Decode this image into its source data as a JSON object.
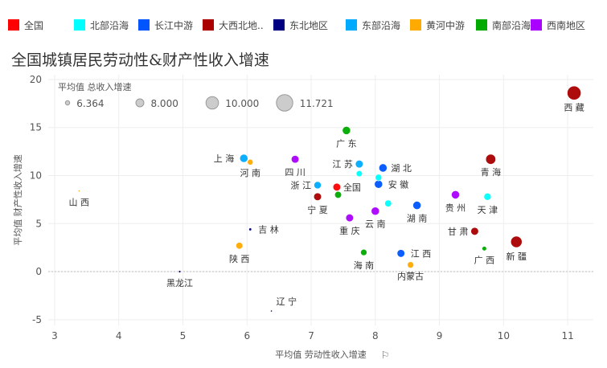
{
  "legend": [
    {
      "name": "全国",
      "color": "#ff0000"
    },
    {
      "name": "北部沿海",
      "color": "#00ffff"
    },
    {
      "name": "长江中游",
      "color": "#0055ff"
    },
    {
      "name": "大西北地..",
      "color": "#aa0000"
    },
    {
      "name": "东北地区",
      "color": "#000080"
    },
    {
      "name": "东部沿海",
      "color": "#00aaff"
    },
    {
      "name": "黄河中游",
      "color": "#ffaa00"
    },
    {
      "name": "南部沿海",
      "color": "#00aa00"
    },
    {
      "name": "西南地区",
      "color": "#aa00ff"
    }
  ],
  "title": "全国城镇居民劳动性&财产性收入增速",
  "chart_data": {
    "type": "scatter",
    "title": "全国城镇居民劳动性&财产性收入增速",
    "xlabel": "平均值 劳动性收入增速",
    "ylabel": "平均值 财产性收入增速",
    "xlim": [
      2.9,
      11.4
    ],
    "ylim": [
      -5.6,
      20.5
    ],
    "xticks": [
      3,
      4,
      5,
      6,
      7,
      8,
      9,
      10,
      11
    ],
    "yticks": [
      -5,
      0,
      5,
      10,
      15,
      20
    ],
    "size_legend": {
      "title": "平均值 总收入增速",
      "values": [
        "6.364",
        "8.000",
        "10.000",
        "11.721"
      ]
    },
    "grid": true,
    "points": [
      {
        "label": "西 藏",
        "x": 11.1,
        "y": 18.6,
        "size": 11.721,
        "group": "大西北地.."
      },
      {
        "label": "广 东",
        "x": 7.55,
        "y": 14.7,
        "size": 9.2,
        "group": "南部沿海"
      },
      {
        "label": "上 海",
        "x": 5.95,
        "y": 11.8,
        "size": 9.2,
        "group": "东部沿海"
      },
      {
        "label": "河 南",
        "x": 6.05,
        "y": 11.4,
        "size": 8.1,
        "group": "黄河中游"
      },
      {
        "label": "四 川",
        "x": 6.75,
        "y": 11.7,
        "size": 9.0,
        "group": "西南地区"
      },
      {
        "label": "江 苏",
        "x": 7.75,
        "y": 11.2,
        "size": 9.0,
        "group": "东部沿海"
      },
      {
        "label": "湖 北",
        "x": 8.12,
        "y": 10.8,
        "size": 9.2,
        "group": "长江中游"
      },
      {
        "label": "",
        "x": 7.75,
        "y": 10.2,
        "size": 8.3,
        "group": "北部沿海"
      },
      {
        "label": "",
        "x": 8.05,
        "y": 9.8,
        "size": 8.5,
        "group": "北部沿海"
      },
      {
        "label": "安 徽",
        "x": 8.05,
        "y": 9.1,
        "size": 9.2,
        "group": "长江中游"
      },
      {
        "label": "青 海",
        "x": 9.8,
        "y": 11.7,
        "size": 10.0,
        "group": "大西北地.."
      },
      {
        "label": "浙 江",
        "x": 7.1,
        "y": 9.0,
        "size": 8.8,
        "group": "东部沿海"
      },
      {
        "label": "全国",
        "x": 7.4,
        "y": 8.8,
        "size": 9.0,
        "group": "全国"
      },
      {
        "label": "宁 夏",
        "x": 7.1,
        "y": 7.8,
        "size": 9.0,
        "group": "大西北地.."
      },
      {
        "label": "",
        "x": 7.42,
        "y": 8.0,
        "size": 8.6,
        "group": "南部沿海"
      },
      {
        "label": "贵 州",
        "x": 9.25,
        "y": 8.0,
        "size": 9.2,
        "group": "西南地区"
      },
      {
        "label": "天 津",
        "x": 9.75,
        "y": 7.8,
        "size": 8.8,
        "group": "北部沿海"
      },
      {
        "label": "",
        "x": 8.2,
        "y": 7.1,
        "size": 8.6,
        "group": "北部沿海"
      },
      {
        "label": "湖 南",
        "x": 8.65,
        "y": 6.9,
        "size": 9.2,
        "group": "长江中游"
      },
      {
        "label": "云 南",
        "x": 8.0,
        "y": 6.3,
        "size": 9.2,
        "group": "西南地区"
      },
      {
        "label": "重 庆",
        "x": 7.6,
        "y": 5.6,
        "size": 9.0,
        "group": "西南地区"
      },
      {
        "label": "山 西",
        "x": 3.38,
        "y": 8.4,
        "size": 6.364,
        "group": "黄河中游"
      },
      {
        "label": "吉 林",
        "x": 6.05,
        "y": 4.4,
        "size": 6.8,
        "group": "东北地区"
      },
      {
        "label": "甘 肃",
        "x": 9.55,
        "y": 4.2,
        "size": 9.0,
        "group": "大西北地.."
      },
      {
        "label": "新 疆",
        "x": 10.2,
        "y": 3.1,
        "size": 10.6,
        "group": "大西北地.."
      },
      {
        "label": "广 西",
        "x": 9.7,
        "y": 2.4,
        "size": 7.6,
        "group": "南部沿海"
      },
      {
        "label": "陕 西",
        "x": 5.88,
        "y": 2.7,
        "size": 8.6,
        "group": "黄河中游"
      },
      {
        "label": "海 南",
        "x": 7.82,
        "y": 2.0,
        "size": 8.4,
        "group": "南部沿海"
      },
      {
        "label": "江 西",
        "x": 8.4,
        "y": 1.9,
        "size": 9.0,
        "group": "长江中游"
      },
      {
        "label": "内蒙古",
        "x": 8.55,
        "y": 0.7,
        "size": 8.4,
        "group": "黄河中游"
      },
      {
        "label": "黑龙江",
        "x": 4.95,
        "y": 0.0,
        "size": 6.6,
        "group": "东北地区"
      },
      {
        "label": "辽 宁",
        "x": 6.38,
        "y": -4.1,
        "size": 6.364,
        "group": "东北地区"
      }
    ]
  }
}
